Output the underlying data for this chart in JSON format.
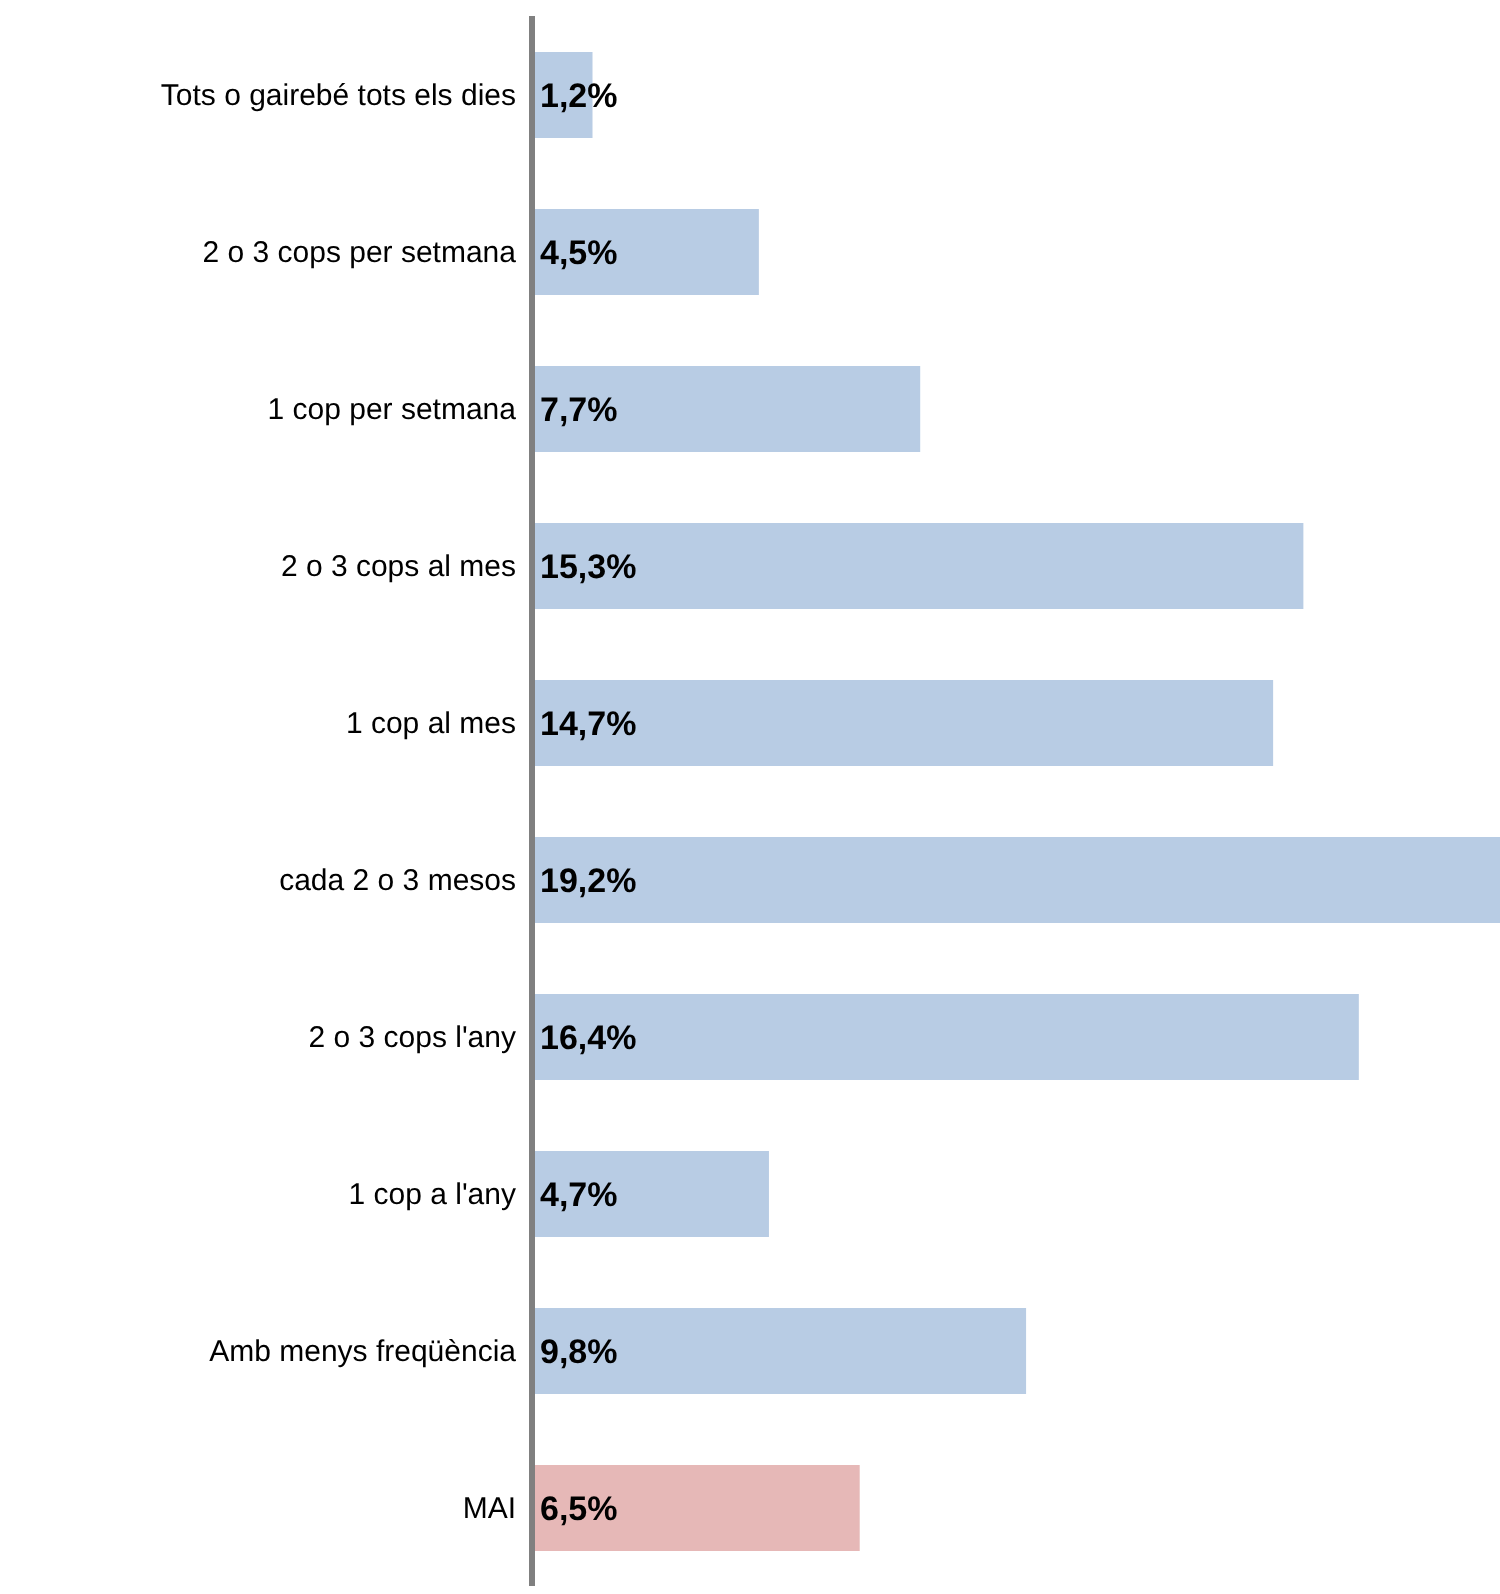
{
  "chart_data": {
    "type": "bar",
    "orientation": "horizontal",
    "categories": [
      "Tots o gairebé tots els dies",
      "2 o 3 cops per setmana",
      "1 cop per setmana",
      "2 o 3 cops al mes",
      "1 cop al mes",
      "cada 2 o 3 mesos",
      "2 o 3 cops l'any",
      "1 cop a l'any",
      "Amb menys freqüència",
      "MAI"
    ],
    "values": [
      1.2,
      4.5,
      7.7,
      15.3,
      14.7,
      19.2,
      16.4,
      4.7,
      9.8,
      6.5
    ],
    "colors": [
      "#b8cce4",
      "#b8cce4",
      "#b8cce4",
      "#b8cce4",
      "#b8cce4",
      "#b8cce4",
      "#b8cce4",
      "#b8cce4",
      "#b8cce4",
      "#e6b8b7"
    ],
    "value_labels": [
      "1,2%",
      "4,5%",
      "7,7%",
      "15,3%",
      "14,7%",
      "19,2%",
      "16,4%",
      "4,7%",
      "9,8%",
      "6,5%"
    ],
    "grid": false,
    "legend": false
  }
}
